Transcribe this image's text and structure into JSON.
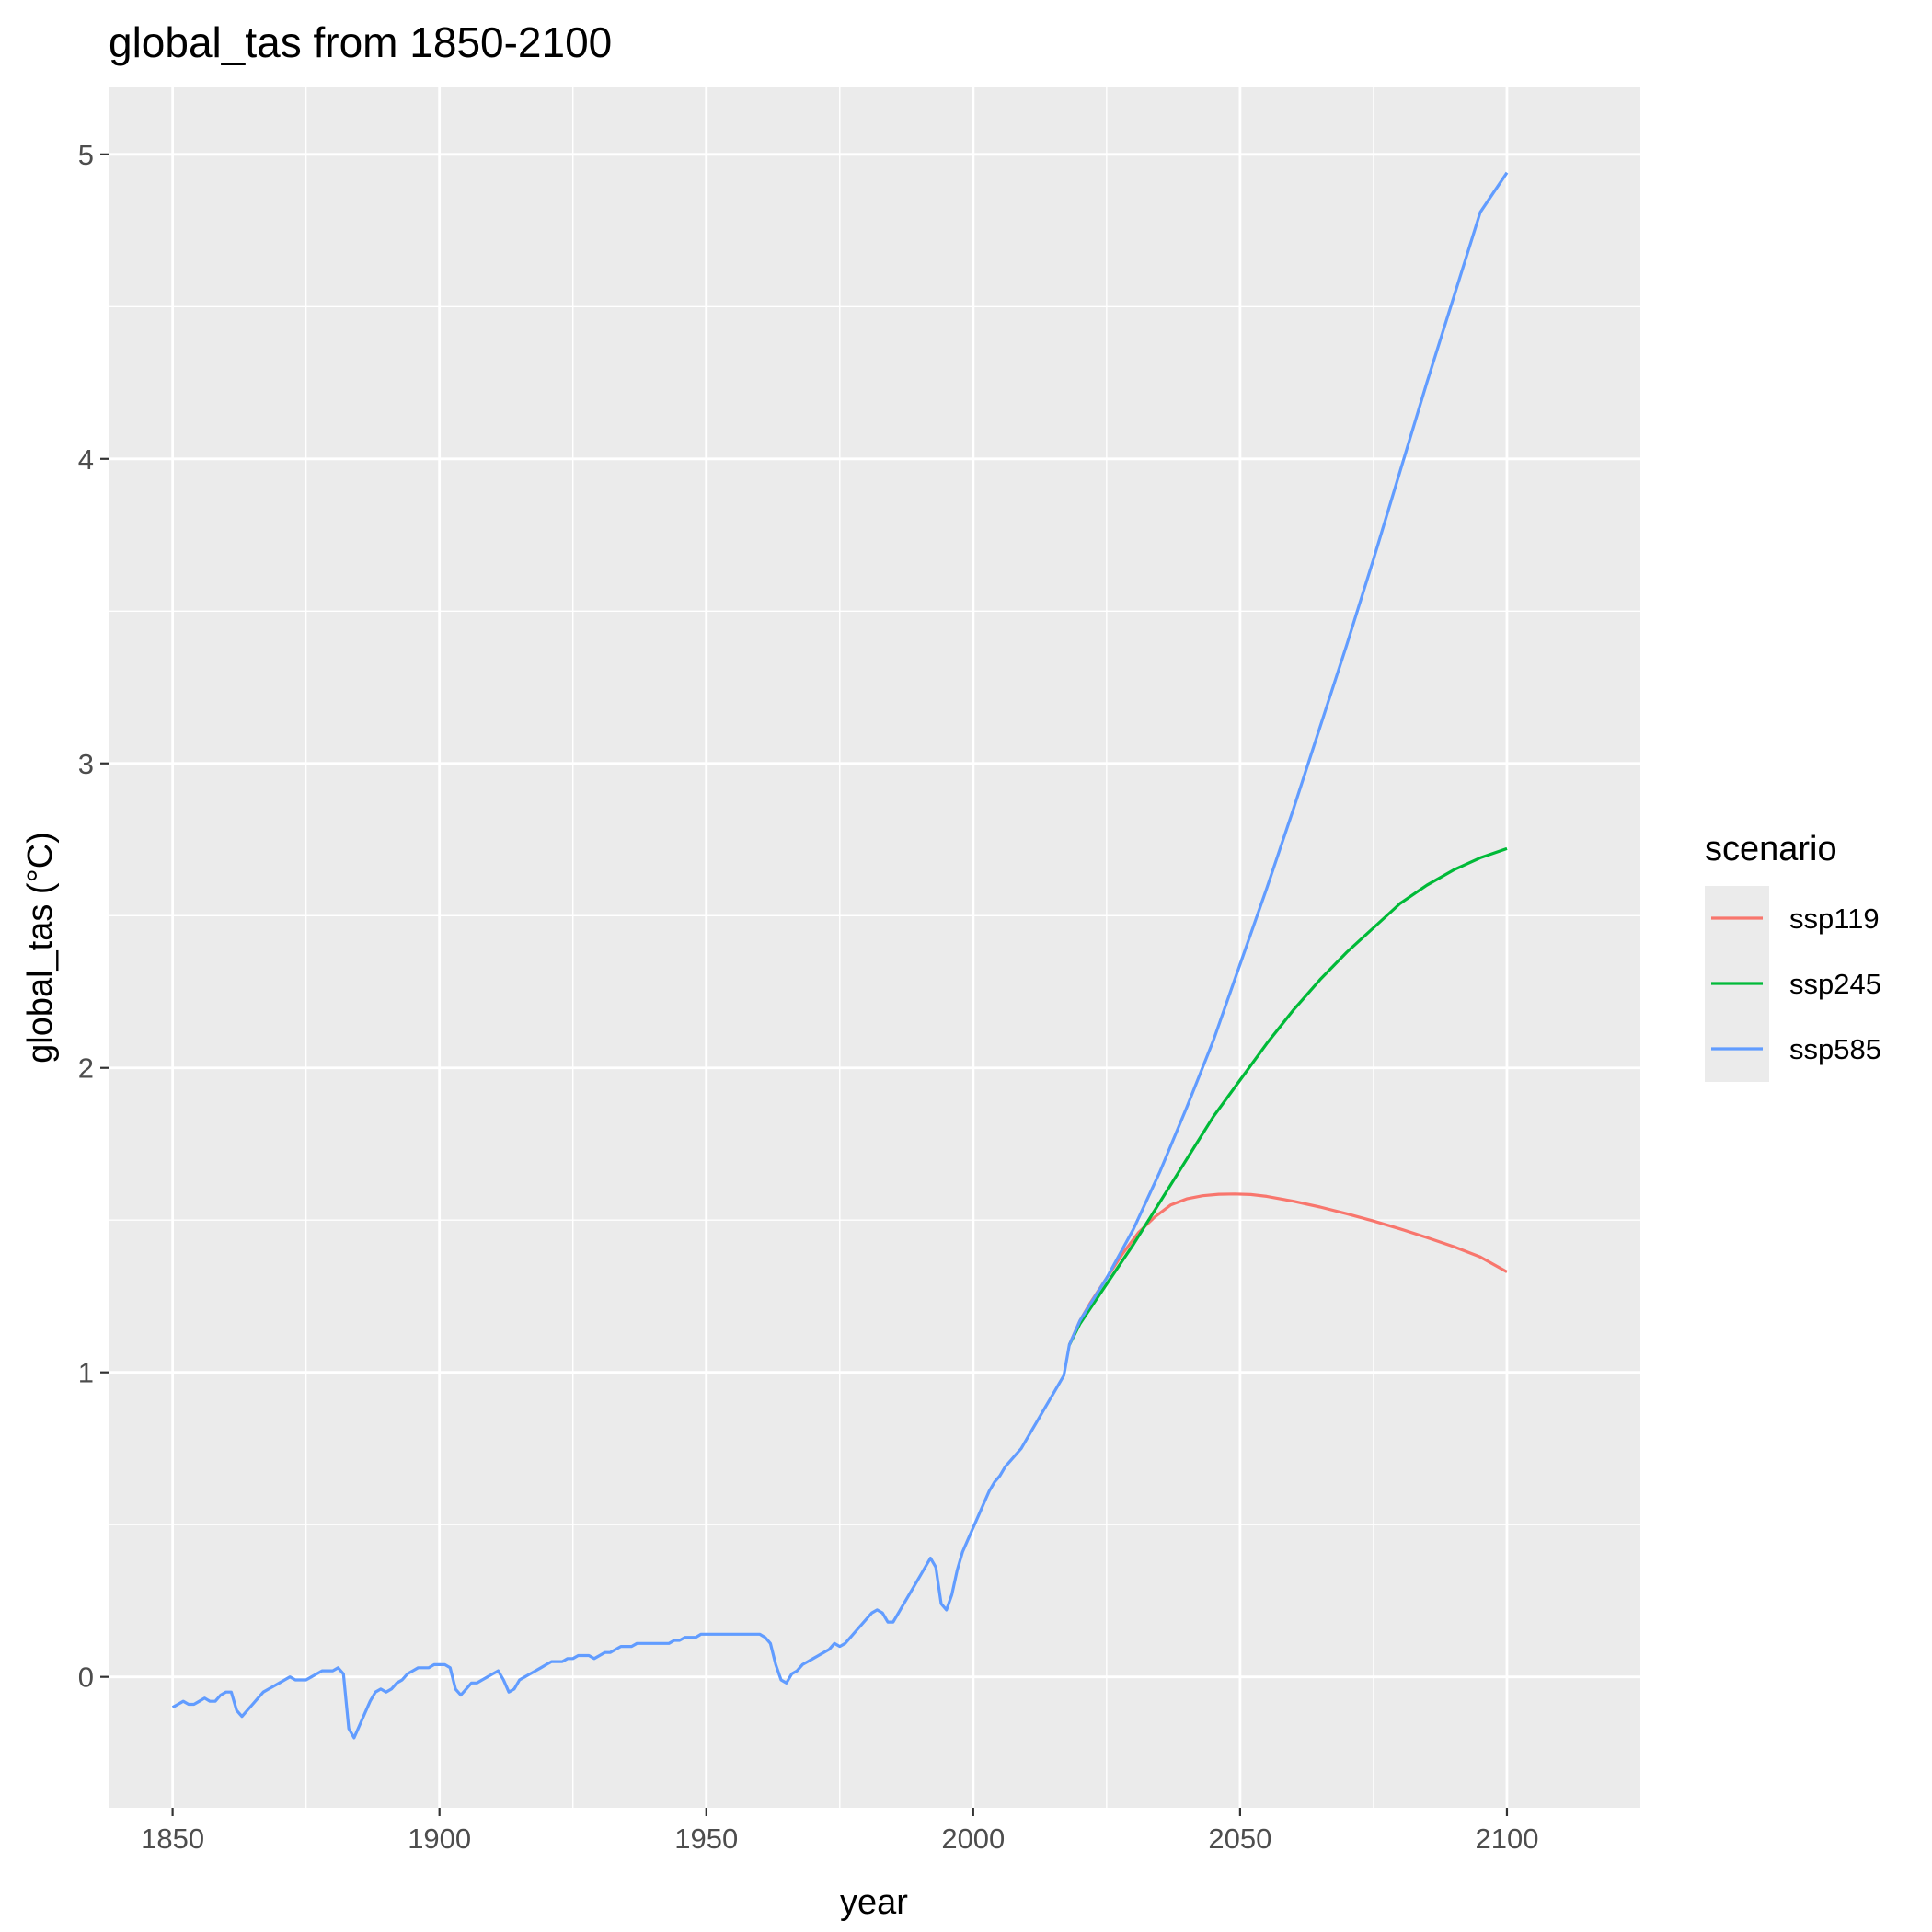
{
  "chart_data": {
    "type": "line",
    "title": "global_tas from 1850-2100",
    "xlabel": "year",
    "ylabel": "global_tas (°C)",
    "xlim": [
      1838,
      2125
    ],
    "ylim": [
      -0.43,
      5.22
    ],
    "x_ticks": [
      1850,
      1900,
      1950,
      2000,
      2050,
      2100
    ],
    "x_tick_labels": [
      "1850",
      "1900",
      "1950",
      "2000",
      "2050",
      "2100"
    ],
    "y_ticks": [
      0,
      1,
      2,
      3,
      4,
      5
    ],
    "y_tick_labels": [
      "0",
      "1",
      "2",
      "3",
      "4",
      "5"
    ],
    "grid": true,
    "legend_title": "scenario",
    "legend_position": "right",
    "series": [
      {
        "name": "ssp119",
        "color": "#F8766D",
        "x": [
          2018,
          2020,
          2022,
          2025,
          2028,
          2031,
          2034,
          2037,
          2040,
          2043,
          2046,
          2049,
          2052,
          2055,
          2060,
          2065,
          2070,
          2075,
          2080,
          2085,
          2090,
          2095,
          2100
        ],
        "y": [
          1.09,
          1.17,
          1.23,
          1.31,
          1.39,
          1.46,
          1.51,
          1.55,
          1.57,
          1.58,
          1.585,
          1.586,
          1.584,
          1.578,
          1.562,
          1.543,
          1.521,
          1.497,
          1.471,
          1.443,
          1.413,
          1.379,
          1.33
        ]
      },
      {
        "name": "ssp245",
        "color": "#00BA38",
        "x": [
          2018,
          2020,
          2025,
          2030,
          2035,
          2040,
          2045,
          2050,
          2055,
          2060,
          2065,
          2070,
          2075,
          2080,
          2085,
          2090,
          2095,
          2100
        ],
        "y": [
          1.09,
          1.16,
          1.29,
          1.42,
          1.56,
          1.7,
          1.84,
          1.96,
          2.08,
          2.19,
          2.29,
          2.38,
          2.46,
          2.54,
          2.6,
          2.65,
          2.69,
          2.72
        ]
      },
      {
        "name": "ssp585",
        "color": "#619CFF",
        "x": [
          1850,
          1851,
          1852,
          1853,
          1854,
          1855,
          1856,
          1857,
          1858,
          1859,
          1860,
          1861,
          1862,
          1863,
          1864,
          1865,
          1866,
          1867,
          1868,
          1869,
          1870,
          1871,
          1872,
          1873,
          1874,
          1875,
          1876,
          1877,
          1878,
          1879,
          1880,
          1881,
          1882,
          1883,
          1884,
          1885,
          1886,
          1887,
          1888,
          1889,
          1890,
          1891,
          1892,
          1893,
          1894,
          1895,
          1896,
          1897,
          1898,
          1899,
          1900,
          1901,
          1902,
          1903,
          1904,
          1905,
          1906,
          1907,
          1908,
          1909,
          1910,
          1911,
          1912,
          1913,
          1914,
          1915,
          1916,
          1917,
          1918,
          1919,
          1920,
          1921,
          1922,
          1923,
          1924,
          1925,
          1926,
          1927,
          1928,
          1929,
          1930,
          1931,
          1932,
          1933,
          1934,
          1935,
          1936,
          1937,
          1938,
          1939,
          1940,
          1941,
          1942,
          1943,
          1944,
          1945,
          1946,
          1947,
          1948,
          1949,
          1950,
          1951,
          1952,
          1953,
          1954,
          1955,
          1956,
          1957,
          1958,
          1959,
          1960,
          1961,
          1962,
          1963,
          1964,
          1965,
          1966,
          1967,
          1968,
          1969,
          1970,
          1971,
          1972,
          1973,
          1974,
          1975,
          1976,
          1977,
          1978,
          1979,
          1980,
          1981,
          1982,
          1983,
          1984,
          1985,
          1986,
          1987,
          1988,
          1989,
          1990,
          1991,
          1992,
          1993,
          1994,
          1995,
          1996,
          1997,
          1998,
          1999,
          2000,
          2001,
          2002,
          2003,
          2004,
          2005,
          2006,
          2007,
          2008,
          2009,
          2010,
          2011,
          2012,
          2013,
          2014,
          2015,
          2016,
          2017,
          2018,
          2020,
          2025,
          2030,
          2035,
          2040,
          2045,
          2050,
          2055,
          2060,
          2065,
          2070,
          2075,
          2080,
          2085,
          2090,
          2095,
          2100
        ],
        "y": [
          -0.1,
          -0.09,
          -0.08,
          -0.09,
          -0.09,
          -0.08,
          -0.07,
          -0.08,
          -0.08,
          -0.06,
          -0.05,
          -0.05,
          -0.11,
          -0.13,
          -0.11,
          -0.09,
          -0.07,
          -0.05,
          -0.04,
          -0.03,
          -0.02,
          -0.01,
          0.0,
          -0.01,
          -0.01,
          -0.01,
          0.0,
          0.01,
          0.02,
          0.02,
          0.02,
          0.03,
          0.01,
          -0.17,
          -0.2,
          -0.16,
          -0.12,
          -0.08,
          -0.05,
          -0.04,
          -0.05,
          -0.04,
          -0.02,
          -0.01,
          0.01,
          0.02,
          0.03,
          0.03,
          0.03,
          0.04,
          0.04,
          0.04,
          0.03,
          -0.04,
          -0.06,
          -0.04,
          -0.02,
          -0.02,
          -0.01,
          0.0,
          0.01,
          0.02,
          -0.01,
          -0.05,
          -0.04,
          -0.01,
          0.0,
          0.01,
          0.02,
          0.03,
          0.04,
          0.05,
          0.05,
          0.05,
          0.06,
          0.06,
          0.07,
          0.07,
          0.07,
          0.06,
          0.07,
          0.08,
          0.08,
          0.09,
          0.1,
          0.1,
          0.1,
          0.11,
          0.11,
          0.11,
          0.11,
          0.11,
          0.11,
          0.11,
          0.12,
          0.12,
          0.13,
          0.13,
          0.13,
          0.14,
          0.14,
          0.14,
          0.14,
          0.14,
          0.14,
          0.14,
          0.14,
          0.14,
          0.14,
          0.14,
          0.14,
          0.13,
          0.11,
          0.04,
          -0.01,
          -0.02,
          0.01,
          0.02,
          0.04,
          0.05,
          0.06,
          0.07,
          0.08,
          0.09,
          0.11,
          0.1,
          0.11,
          0.13,
          0.15,
          0.17,
          0.19,
          0.21,
          0.22,
          0.21,
          0.18,
          0.18,
          0.21,
          0.24,
          0.27,
          0.3,
          0.33,
          0.36,
          0.39,
          0.36,
          0.24,
          0.22,
          0.27,
          0.35,
          0.41,
          0.45,
          0.49,
          0.53,
          0.57,
          0.61,
          0.64,
          0.66,
          0.69,
          0.71,
          0.73,
          0.75,
          0.78,
          0.81,
          0.84,
          0.87,
          0.9,
          0.93,
          0.96,
          0.99,
          1.09,
          1.17,
          1.31,
          1.47,
          1.66,
          1.87,
          2.09,
          2.34,
          2.59,
          2.85,
          3.12,
          3.39,
          3.67,
          3.96,
          4.25,
          4.53,
          4.81,
          4.94
        ]
      }
    ]
  }
}
